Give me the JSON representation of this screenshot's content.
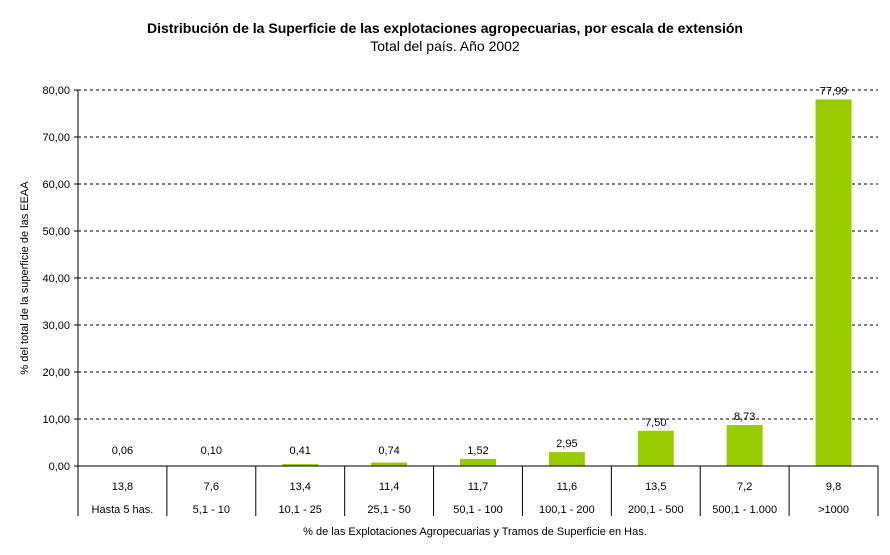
{
  "chart_data": {
    "type": "bar",
    "title": "Distribución de la Superficie de las explotaciones agropecuarias, por escala de extensión",
    "subtitle": "Total del país. Año 2002",
    "ylabel": "% del total de la superficie de las EEAA",
    "xlabel": "% de las Explotaciones Agropecuarias y Tramos de Superficie en Has.",
    "ylim": [
      0,
      80
    ],
    "yticks": [
      "0,00",
      "10,00",
      "20,00",
      "30,00",
      "40,00",
      "50,00",
      "60,00",
      "70,00",
      "80,00"
    ],
    "grid": true,
    "categories": [
      "Hasta 5 has.",
      "5,1 - 10",
      "10,1 - 25",
      "25,1 - 50",
      "50,1 - 100",
      "100,1 - 200",
      "200,1 - 500",
      "500,1 - 1.000",
      ">1000"
    ],
    "table_row": [
      "13,8",
      "7,6",
      "13,4",
      "11,4",
      "11,7",
      "11,6",
      "13,5",
      "7,2",
      "9,8"
    ],
    "values": [
      0.06,
      0.1,
      0.41,
      0.74,
      1.52,
      2.95,
      7.5,
      8.73,
      77.99
    ],
    "value_labels": [
      "0,06",
      "0,10",
      "0,41",
      "0,74",
      "1,52",
      "2,95",
      "7,50",
      "8,73",
      "77,99"
    ],
    "bar_color": "#99cc00"
  }
}
